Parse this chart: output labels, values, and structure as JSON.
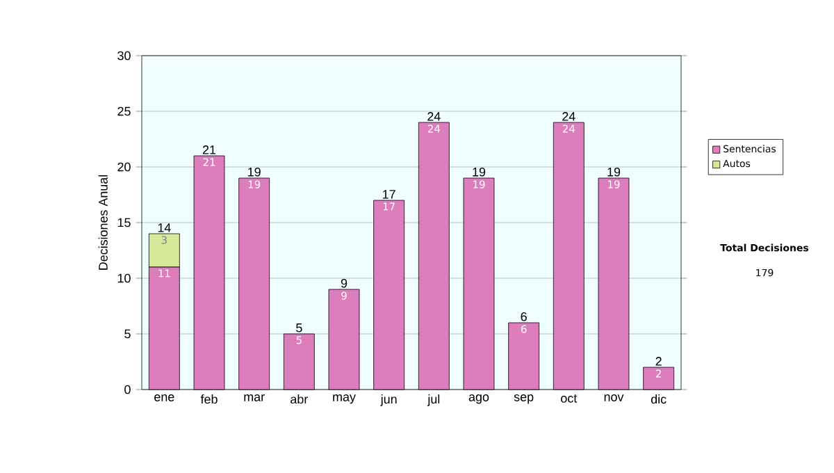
{
  "chart_data": {
    "type": "bar",
    "stacked": true,
    "ylabel": "Decisiones Anual",
    "categories": [
      "ene",
      "feb",
      "mar",
      "abr",
      "may",
      "jun",
      "jul",
      "ago",
      "sep",
      "oct",
      "nov",
      "dic"
    ],
    "series": [
      {
        "name": "Sentencias",
        "color": "#dd7dbd",
        "values": [
          11,
          21,
          19,
          5,
          9,
          17,
          24,
          19,
          6,
          24,
          19,
          2
        ],
        "value_labels": [
          "11",
          "21",
          "19",
          "5",
          "9",
          "17",
          "24",
          "19",
          "6",
          "24",
          "19",
          "2"
        ]
      },
      {
        "name": "Autos",
        "color": "#d6e89a",
        "values": [
          3,
          0,
          0,
          0,
          0,
          0,
          0,
          0,
          0,
          0,
          0,
          0
        ],
        "value_labels": [
          "3",
          null,
          null,
          null,
          null,
          null,
          null,
          null,
          null,
          null,
          null,
          null
        ]
      }
    ],
    "totals": [
      "14",
      "21",
      "19",
      "5",
      "9",
      "17",
      "24",
      "19",
      "6",
      "24",
      "19",
      "2"
    ],
    "ylim": [
      0,
      30
    ],
    "yticks": [
      0,
      5,
      10,
      15,
      20,
      25,
      30
    ],
    "grid": "y",
    "legend": "right",
    "annotations": [
      "Total Decisiones",
      "179"
    ]
  }
}
